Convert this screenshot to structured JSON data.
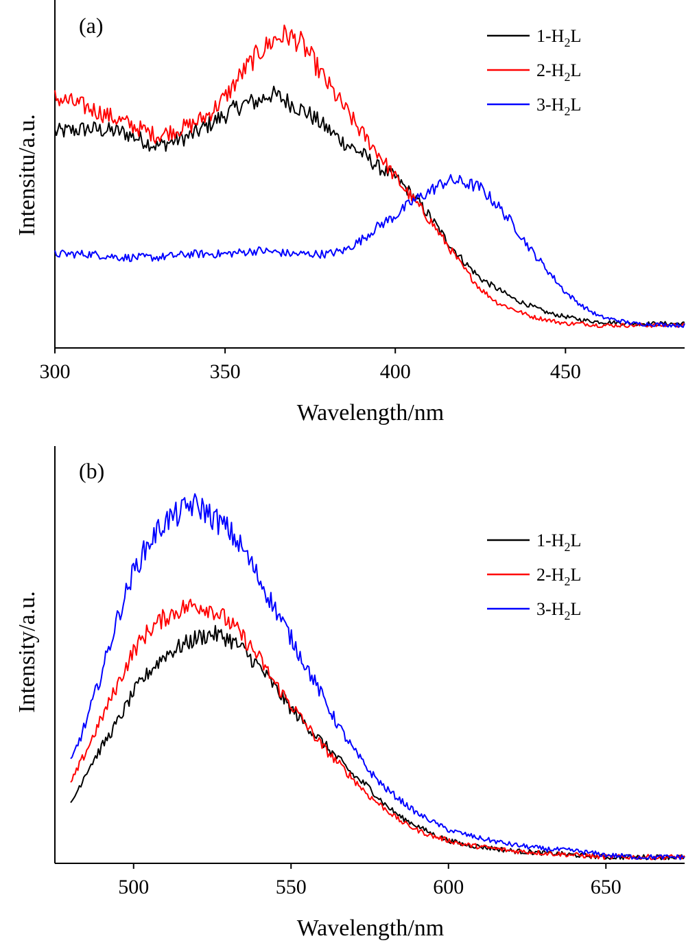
{
  "chart_data": [
    {
      "type": "line",
      "panel_label": "(a)",
      "xlabel": "Wavelength/nm",
      "ylabel": "Intensitu/a.u.",
      "xlim": [
        300,
        485
      ],
      "ylim": [
        0,
        1
      ],
      "x_ticks": [
        300,
        350,
        400,
        450
      ],
      "legend_position": "top-right",
      "legend": [
        {
          "prefix": "1-H",
          "sub": "2",
          "suffix": "L",
          "color": "#000000"
        },
        {
          "prefix": "2-H",
          "sub": "2",
          "suffix": "L",
          "color": "#ff0000"
        },
        {
          "prefix": "3-H",
          "sub": "2",
          "suffix": "L",
          "color": "#0000ff"
        }
      ],
      "series": [
        {
          "color": "#000000",
          "x": [
            300,
            310,
            320,
            330,
            340,
            350,
            355,
            360,
            363,
            366,
            370,
            375,
            380,
            385,
            390,
            395,
            400,
            405,
            410,
            415,
            420,
            425,
            430,
            435,
            440,
            445,
            450,
            455,
            460,
            470,
            485
          ],
          "y": [
            0.62,
            0.63,
            0.62,
            0.58,
            0.61,
            0.67,
            0.7,
            0.71,
            0.73,
            0.72,
            0.7,
            0.67,
            0.63,
            0.59,
            0.56,
            0.52,
            0.49,
            0.44,
            0.38,
            0.31,
            0.25,
            0.2,
            0.17,
            0.14,
            0.12,
            0.1,
            0.09,
            0.08,
            0.075,
            0.07,
            0.07
          ]
        },
        {
          "color": "#ff0000",
          "x": [
            300,
            310,
            320,
            330,
            340,
            345,
            350,
            355,
            360,
            365,
            368,
            372,
            375,
            380,
            385,
            390,
            395,
            400,
            405,
            410,
            415,
            420,
            425,
            430,
            435,
            440,
            445,
            450,
            455,
            460,
            470,
            485
          ],
          "y": [
            0.72,
            0.69,
            0.65,
            0.61,
            0.64,
            0.67,
            0.72,
            0.79,
            0.85,
            0.89,
            0.9,
            0.88,
            0.84,
            0.76,
            0.69,
            0.62,
            0.56,
            0.49,
            0.43,
            0.37,
            0.3,
            0.23,
            0.17,
            0.13,
            0.11,
            0.09,
            0.08,
            0.07,
            0.07,
            0.065,
            0.065,
            0.065
          ]
        },
        {
          "color": "#0000ff",
          "x": [
            300,
            310,
            320,
            330,
            340,
            350,
            360,
            370,
            380,
            385,
            390,
            395,
            400,
            405,
            410,
            415,
            418,
            422,
            425,
            430,
            435,
            440,
            445,
            450,
            455,
            460,
            465,
            470,
            485
          ],
          "y": [
            0.27,
            0.27,
            0.26,
            0.26,
            0.27,
            0.27,
            0.28,
            0.27,
            0.27,
            0.28,
            0.31,
            0.35,
            0.38,
            0.42,
            0.45,
            0.48,
            0.48,
            0.47,
            0.46,
            0.41,
            0.35,
            0.28,
            0.22,
            0.16,
            0.12,
            0.09,
            0.08,
            0.07,
            0.065
          ]
        }
      ]
    },
    {
      "type": "line",
      "panel_label": "(b)",
      "xlabel": "Wavelength/nm",
      "ylabel": "Intensity/a.u.",
      "xlim": [
        475,
        675
      ],
      "ylim": [
        0,
        1
      ],
      "x_ticks": [
        500,
        550,
        600,
        650
      ],
      "legend_position": "right",
      "legend": [
        {
          "prefix": "1-H",
          "sub": "2",
          "suffix": "L",
          "color": "#000000"
        },
        {
          "prefix": "2-H",
          "sub": "2",
          "suffix": "L",
          "color": "#ff0000"
        },
        {
          "prefix": "3-H",
          "sub": "2",
          "suffix": "L",
          "color": "#0000ff"
        }
      ],
      "series": [
        {
          "color": "#000000",
          "x": [
            480,
            485,
            490,
            495,
            500,
            505,
            510,
            515,
            520,
            525,
            530,
            535,
            540,
            545,
            550,
            555,
            560,
            565,
            570,
            575,
            580,
            585,
            590,
            595,
            600,
            605,
            610,
            615,
            620,
            630,
            640,
            650,
            660,
            675
          ],
          "y": [
            0.14,
            0.22,
            0.28,
            0.34,
            0.41,
            0.46,
            0.5,
            0.52,
            0.54,
            0.55,
            0.54,
            0.51,
            0.47,
            0.42,
            0.37,
            0.33,
            0.29,
            0.25,
            0.21,
            0.18,
            0.14,
            0.11,
            0.09,
            0.07,
            0.055,
            0.045,
            0.04,
            0.035,
            0.03,
            0.025,
            0.02,
            0.015,
            0.015,
            0.015
          ]
        },
        {
          "color": "#ff0000",
          "x": [
            480,
            485,
            490,
            495,
            500,
            505,
            510,
            515,
            520,
            525,
            530,
            535,
            540,
            545,
            550,
            555,
            560,
            565,
            570,
            575,
            580,
            585,
            590,
            595,
            600,
            605,
            610,
            615,
            620,
            630,
            640,
            650,
            660,
            675
          ],
          "y": [
            0.19,
            0.27,
            0.35,
            0.43,
            0.51,
            0.56,
            0.59,
            0.61,
            0.62,
            0.61,
            0.58,
            0.54,
            0.49,
            0.43,
            0.38,
            0.33,
            0.28,
            0.24,
            0.2,
            0.16,
            0.13,
            0.1,
            0.08,
            0.065,
            0.055,
            0.045,
            0.04,
            0.035,
            0.03,
            0.025,
            0.02,
            0.015,
            0.015,
            0.015
          ]
        },
        {
          "color": "#0000ff",
          "x": [
            480,
            485,
            490,
            495,
            500,
            505,
            510,
            515,
            518,
            522,
            525,
            530,
            535,
            540,
            545,
            550,
            555,
            560,
            565,
            570,
            575,
            580,
            585,
            590,
            595,
            600,
            605,
            610,
            620,
            630,
            640,
            650,
            660,
            675
          ],
          "y": [
            0.24,
            0.34,
            0.46,
            0.59,
            0.7,
            0.77,
            0.82,
            0.84,
            0.86,
            0.85,
            0.83,
            0.8,
            0.75,
            0.68,
            0.61,
            0.54,
            0.47,
            0.4,
            0.33,
            0.27,
            0.22,
            0.18,
            0.15,
            0.12,
            0.1,
            0.08,
            0.07,
            0.06,
            0.045,
            0.035,
            0.03,
            0.02,
            0.015,
            0.015
          ]
        }
      ]
    }
  ]
}
